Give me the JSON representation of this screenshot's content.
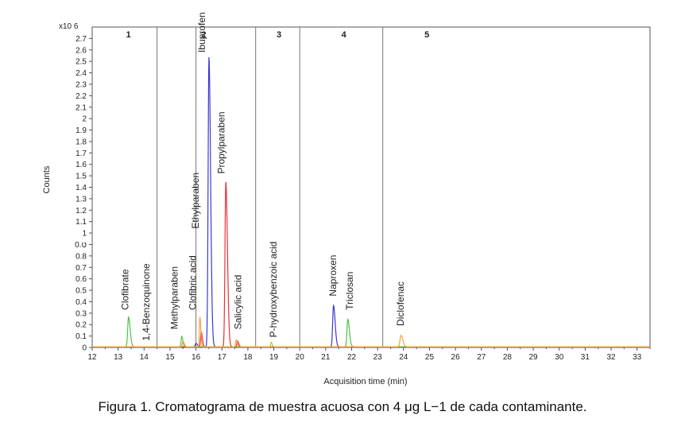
{
  "caption": "Figura 1. Cromatograma de muestra acuosa con 4 μg L−1 de cada contaminante.",
  "chart_data": {
    "type": "line",
    "xlabel": "Acquisition time (min)",
    "ylabel": "Counts",
    "y_multiplier": "x10 6",
    "xlim": [
      12,
      33.5
    ],
    "ylim": [
      0,
      2.8
    ],
    "x_ticks": [
      "12",
      "13",
      "14",
      "15",
      "16",
      "17",
      "18",
      "19",
      "20",
      "21",
      "22",
      "23",
      "24",
      "25",
      "26",
      "27",
      "28",
      "29",
      "30",
      "31",
      "32",
      "33"
    ],
    "y_ticks": [
      {
        "value": 0,
        "label": "0"
      },
      {
        "value": 0.1,
        "label": "0.1"
      },
      {
        "value": 0.2,
        "label": "0.2"
      },
      {
        "value": 0.3,
        "label": "0.3"
      },
      {
        "value": 0.4,
        "label": "0.4"
      },
      {
        "value": 0.5,
        "label": "0.5"
      },
      {
        "value": 0.6,
        "label": "0.6"
      },
      {
        "value": 0.7,
        "label": "0.7"
      },
      {
        "value": 0.8,
        "label": "0.8"
      },
      {
        "value": 0.9,
        "label": "0.ט"
      },
      {
        "value": 1.0,
        "label": "1"
      },
      {
        "value": 1.1,
        "label": "1.1"
      },
      {
        "value": 1.2,
        "label": "1.2"
      },
      {
        "value": 1.3,
        "label": "1.3"
      },
      {
        "value": 1.4,
        "label": "1.4"
      },
      {
        "value": 1.5,
        "label": "1.5"
      },
      {
        "value": 1.6,
        "label": "1.6"
      },
      {
        "value": 1.7,
        "label": "1.7"
      },
      {
        "value": 1.8,
        "label": "1.8"
      },
      {
        "value": 1.9,
        "label": "1.9"
      },
      {
        "value": 2.0,
        "label": "2"
      },
      {
        "value": 2.1,
        "label": "2.1"
      },
      {
        "value": 2.2,
        "label": "2.2"
      },
      {
        "value": 2.3,
        "label": "2.3"
      },
      {
        "value": 2.4,
        "label": "2.4"
      },
      {
        "value": 2.5,
        "label": "2.5"
      },
      {
        "value": 2.6,
        "label": "2.6"
      },
      {
        "value": 2.7,
        "label": "2.7"
      }
    ],
    "segment_boundaries": [
      14.5,
      16.0,
      18.3,
      20.0,
      23.2
    ],
    "segments": [
      {
        "label": "1",
        "x": 13.4
      },
      {
        "label": "2",
        "x": 16.3
      },
      {
        "label": "3",
        "x": 19.2
      },
      {
        "label": "4",
        "x": 21.7
      },
      {
        "label": "5",
        "x": 24.9
      }
    ],
    "series": [
      {
        "color": "#3a3acf",
        "peaks": [
          {
            "x": 16.5,
            "y": 2.53,
            "w": 0.07
          },
          {
            "x": 21.3,
            "y": 0.36,
            "w": 0.07
          },
          {
            "x": 16.0,
            "y": 0.03,
            "w": 0.06
          }
        ]
      },
      {
        "color": "#e8313a",
        "peaks": [
          {
            "x": 17.15,
            "y": 1.44,
            "w": 0.07
          },
          {
            "x": 16.2,
            "y": 0.13,
            "w": 0.05
          },
          {
            "x": 17.6,
            "y": 0.05,
            "w": 0.05
          }
        ]
      },
      {
        "color": "#4ec24e",
        "peaks": [
          {
            "x": 13.4,
            "y": 0.26,
            "w": 0.07
          },
          {
            "x": 15.45,
            "y": 0.09,
            "w": 0.05
          },
          {
            "x": 21.85,
            "y": 0.24,
            "w": 0.07
          }
        ]
      },
      {
        "color": "#f4a340",
        "peaks": [
          {
            "x": 16.15,
            "y": 0.26,
            "w": 0.04
          },
          {
            "x": 15.5,
            "y": 0.05,
            "w": 0.05
          },
          {
            "x": 17.55,
            "y": 0.06,
            "w": 0.05
          },
          {
            "x": 18.9,
            "y": 0.04,
            "w": 0.04
          },
          {
            "x": 23.9,
            "y": 0.1,
            "w": 0.08
          }
        ]
      }
    ],
    "annotations": [
      {
        "text": "Clofibrate",
        "x": 13.4,
        "y": 0.3
      },
      {
        "text": "1,4-Benzoquinone",
        "x": 14.2,
        "y": 0.03
      },
      {
        "text": "Methylparaben",
        "x": 15.3,
        "y": 0.13
      },
      {
        "text": "Clofibric acid",
        "x": 16.0,
        "y": 0.3
      },
      {
        "text": "Ethylparaben",
        "x": 16.1,
        "y": 1.01
      },
      {
        "text": "Ibuprofen",
        "x": 16.35,
        "y": 2.55
      },
      {
        "text": "Propylparaben",
        "x": 17.1,
        "y": 1.49
      },
      {
        "text": "Salicylic acid",
        "x": 17.75,
        "y": 0.13
      },
      {
        "text": "P-hydroxybenzoic acid",
        "x": 19.1,
        "y": 0.06
      },
      {
        "text": "Naproxen",
        "x": 21.4,
        "y": 0.42
      },
      {
        "text": "Triclosan",
        "x": 22.05,
        "y": 0.3
      },
      {
        "text": "Diclofenac",
        "x": 24.0,
        "y": 0.16
      }
    ]
  }
}
